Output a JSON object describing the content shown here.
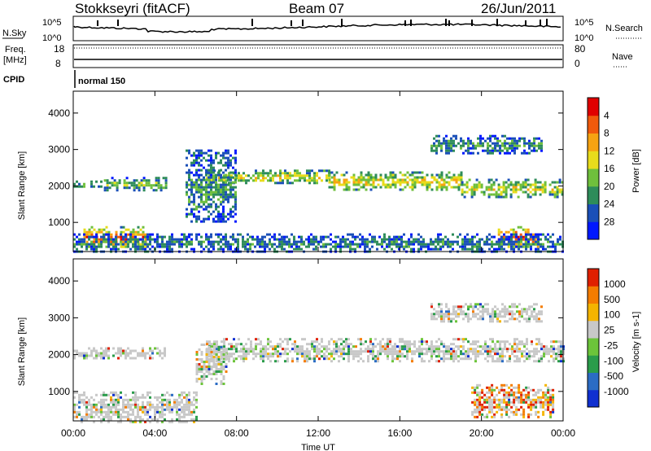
{
  "header": {
    "station": "Stokkseyri (fitACF)",
    "beam": "Beam 07",
    "date": "26/Jun/2011"
  },
  "top_panels": {
    "nsky_label": "N.Sky",
    "nsky_ticks": [
      "10^5",
      "10^0"
    ],
    "nsearch_label": "N.Search",
    "nsearch_ticks": [
      "10^5",
      "10^0"
    ],
    "freq_label": "Freq.",
    "freq_unit": "[MHz]",
    "freq_ticks": [
      "18",
      "8"
    ],
    "nave_label": "Nave",
    "nave_ticks": [
      "80",
      "0"
    ],
    "cpid_label": "CPID",
    "cpid_value": "normal 150"
  },
  "chart_data": [
    {
      "type": "heatmap",
      "panel": "power",
      "ylabel": "Slant Range [km]",
      "yticks": [
        "1000",
        "2000",
        "3000",
        "4000"
      ],
      "ylim": [
        200,
        4600
      ],
      "xlim_hours": [
        0,
        24
      ],
      "colorbar": {
        "label": "Power [dB]",
        "ticks": [
          "4",
          "8",
          "12",
          "16",
          "20",
          "24",
          "28"
        ],
        "colors": [
          "#0018ff",
          "#1a4fb8",
          "#2e8c5a",
          "#6fbf3c",
          "#e8dc1c",
          "#f6a312",
          "#f05a0c",
          "#e00000"
        ]
      },
      "bands": [
        {
          "t0": 0.0,
          "t1": 1.5,
          "r0": 1950,
          "r1": 2150,
          "level": 0.35
        },
        {
          "t0": 1.5,
          "t1": 4.5,
          "r0": 1900,
          "r1": 2250,
          "level": 0.45
        },
        {
          "t0": 0.5,
          "t1": 3.5,
          "r0": 300,
          "r1": 900,
          "level": 0.9
        },
        {
          "t0": 6.5,
          "t1": 12.5,
          "r0": 2100,
          "r1": 2450,
          "level": 0.6
        },
        {
          "t0": 12.5,
          "t1": 19.0,
          "r0": 1900,
          "r1": 2400,
          "level": 0.65
        },
        {
          "t0": 19.0,
          "t1": 24.0,
          "r0": 1700,
          "r1": 2200,
          "level": 0.55
        },
        {
          "t0": 20.8,
          "t1": 22.8,
          "r0": 300,
          "r1": 900,
          "level": 0.95
        },
        {
          "t0": 17.5,
          "t1": 23.0,
          "r0": 2900,
          "r1": 3400,
          "level": 0.3
        },
        {
          "t0": 0.0,
          "t1": 24.0,
          "r0": 200,
          "r1": 700,
          "level": 0.25
        },
        {
          "t0": 5.5,
          "t1": 8.0,
          "r0": 1000,
          "r1": 3000,
          "level": 0.3
        }
      ]
    },
    {
      "type": "heatmap",
      "panel": "velocity",
      "ylabel": "Slant Range [km]",
      "yticks": [
        "1000",
        "2000",
        "3000",
        "4000"
      ],
      "ylim": [
        200,
        4600
      ],
      "xlim_hours": [
        0,
        24
      ],
      "xticks": [
        "00:00",
        "04:00",
        "08:00",
        "12:00",
        "16:00",
        "20:00",
        "00:00"
      ],
      "xlabel": "Time UT",
      "colorbar": {
        "label": "Velocity [m s-1]",
        "ticks": [
          "1000",
          "500",
          "100",
          "25",
          "-25",
          "-100",
          "-500",
          "-1000"
        ],
        "colors": [
          "#1030d0",
          "#2b6cc4",
          "#2a9c4a",
          "#6cc43a",
          "#c8c8c8",
          "#f4b400",
          "#f47c00",
          "#e02000"
        ]
      },
      "bands": [
        {
          "t0": 0.0,
          "t1": 4.5,
          "r0": 1900,
          "r1": 2200,
          "level": 0.5
        },
        {
          "t0": 6.5,
          "t1": 24.0,
          "r0": 1800,
          "r1": 2450,
          "level": 0.5
        },
        {
          "t0": 0.0,
          "t1": 6.0,
          "r0": 200,
          "r1": 1000,
          "level": 0.4
        },
        {
          "t0": 17.5,
          "t1": 23.0,
          "r0": 2900,
          "r1": 3400,
          "level": 0.5
        },
        {
          "t0": 19.5,
          "t1": 23.5,
          "r0": 300,
          "r1": 1200,
          "level": 0.8
        },
        {
          "t0": 6.0,
          "t1": 7.5,
          "r0": 1200,
          "r1": 2300,
          "level": 0.3
        }
      ]
    }
  ]
}
